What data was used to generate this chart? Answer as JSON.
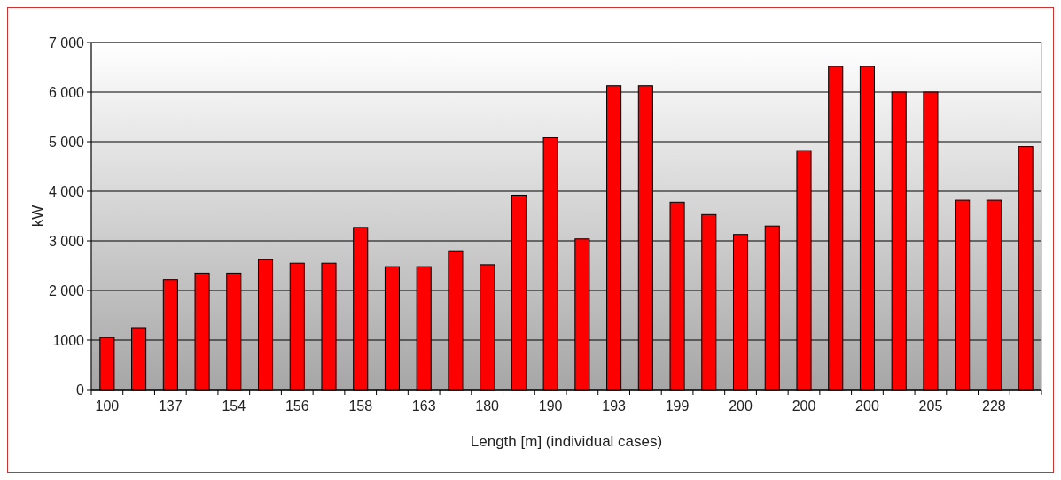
{
  "chart_data": {
    "type": "bar",
    "xlabel": "Length [m] (individual cases)",
    "ylabel": "kW",
    "categories": [
      "100",
      null,
      "137",
      null,
      "154",
      null,
      "156",
      null,
      "158",
      null,
      "163",
      null,
      "180",
      null,
      "190",
      null,
      "193",
      null,
      "199",
      null,
      "200",
      null,
      "200",
      null,
      "200",
      null,
      "205",
      null,
      "228",
      null
    ],
    "values": [
      1050,
      1250,
      2220,
      2350,
      2350,
      2620,
      2550,
      2550,
      3270,
      2480,
      2480,
      2800,
      2520,
      3920,
      5080,
      3040,
      6130,
      6130,
      3780,
      3530,
      3130,
      3300,
      4820,
      6520,
      6520,
      6000,
      6000,
      3820,
      3820,
      4900
    ],
    "color": "#ff0000",
    "ylim": [
      0,
      7000
    ],
    "yticks": [
      0,
      {
        "value": 1000,
        "label": "1000"
      },
      {
        "value": 2000,
        "label": "2 000"
      },
      {
        "value": 3000,
        "label": "3 000"
      },
      {
        "value": 4000,
        "label": "4 000"
      },
      {
        "value": 5000,
        "label": "5 000"
      },
      {
        "value": 6000,
        "label": "6 000"
      },
      {
        "value": 7000,
        "label": "7 000"
      }
    ],
    "grid": "y"
  }
}
